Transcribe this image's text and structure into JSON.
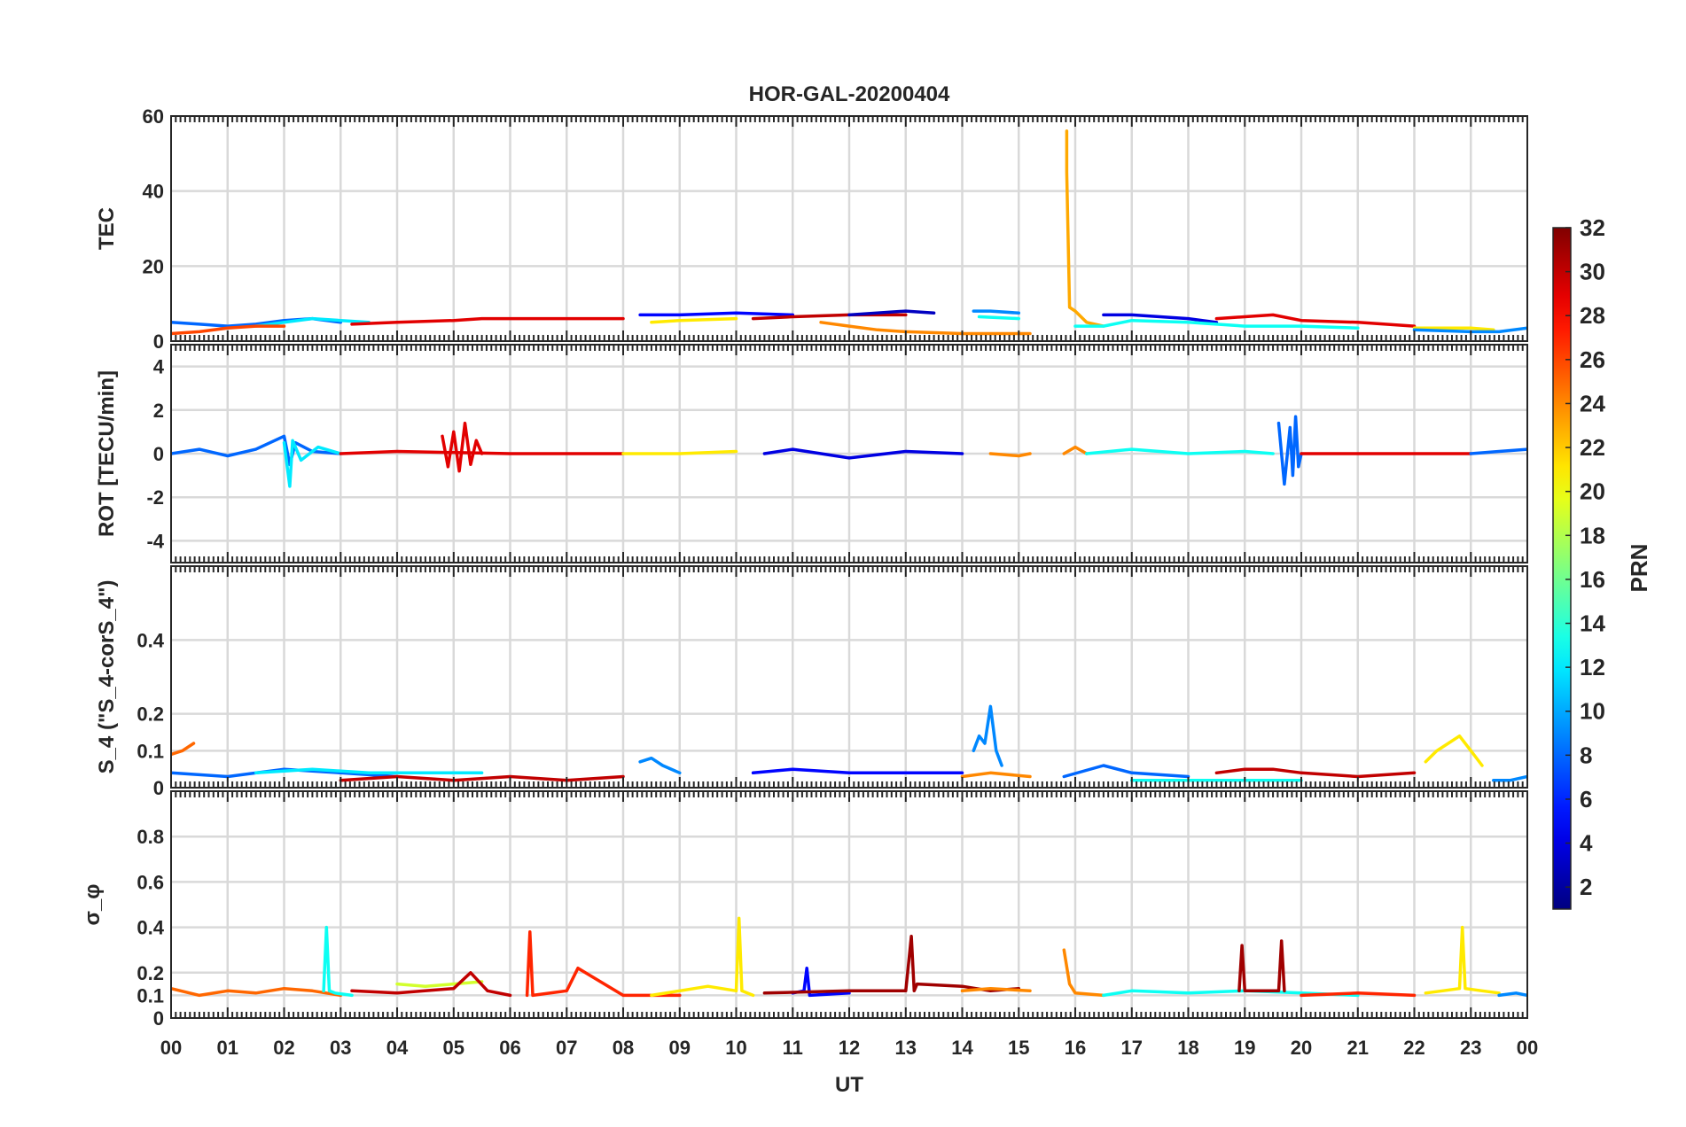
{
  "figure": {
    "title": "HOR-GAL-20200404",
    "xlabel": "UT",
    "x_ticks": [
      "00",
      "01",
      "02",
      "03",
      "04",
      "05",
      "06",
      "07",
      "08",
      "09",
      "10",
      "11",
      "12",
      "13",
      "14",
      "15",
      "16",
      "17",
      "18",
      "19",
      "20",
      "21",
      "22",
      "23",
      "00"
    ]
  },
  "colorbar": {
    "label": "PRN",
    "range": [
      1,
      32
    ],
    "ticks": [
      "2",
      "4",
      "6",
      "8",
      "10",
      "12",
      "14",
      "16",
      "18",
      "20",
      "22",
      "24",
      "26",
      "28",
      "30",
      "32"
    ],
    "colormap": "jet"
  },
  "chart_data": [
    {
      "type": "line",
      "panel": "tec",
      "ylabel": "TEC",
      "ylim": [
        0,
        60
      ],
      "y_ticks": [
        "0",
        "20",
        "40",
        "60"
      ],
      "grid": true,
      "series": [
        {
          "prn": 8,
          "x": [
            0,
            0.5,
            1,
            1.5,
            2,
            2.5,
            3
          ],
          "y": [
            5,
            4.5,
            4,
            4.5,
            5.5,
            6,
            5
          ]
        },
        {
          "prn": 12,
          "x": [
            1.5,
            2,
            2.5,
            3,
            3.5
          ],
          "y": [
            4,
            5,
            6,
            5.5,
            5
          ]
        },
        {
          "prn": 26,
          "x": [
            0,
            0.5,
            1,
            1.5,
            2
          ],
          "y": [
            2,
            2.5,
            3.5,
            4,
            4
          ]
        },
        {
          "prn": 29,
          "x": [
            3.2,
            4,
            5,
            5.5,
            6,
            7,
            8
          ],
          "y": [
            4.5,
            5,
            5.5,
            6,
            6,
            6,
            6
          ]
        },
        {
          "prn": 5,
          "x": [
            8.3,
            9,
            10,
            11
          ],
          "y": [
            7,
            7,
            7.5,
            7
          ]
        },
        {
          "prn": 21,
          "x": [
            8.5,
            9,
            10
          ],
          "y": [
            5,
            5.5,
            6
          ]
        },
        {
          "prn": 30,
          "x": [
            10.3,
            11,
            12,
            13
          ],
          "y": [
            6,
            6.5,
            7,
            7
          ]
        },
        {
          "prn": 3,
          "x": [
            12,
            13,
            13.5
          ],
          "y": [
            7,
            8,
            7.5
          ]
        },
        {
          "prn": 24,
          "x": [
            11.5,
            12,
            12.5,
            13,
            14,
            15.2
          ],
          "y": [
            5,
            4,
            3,
            2.5,
            2,
            2
          ]
        },
        {
          "prn": 9,
          "x": [
            14.2,
            14.5,
            15
          ],
          "y": [
            8,
            8,
            7.5
          ]
        },
        {
          "prn": 13,
          "x": [
            14.3,
            15
          ],
          "y": [
            6.5,
            6
          ]
        },
        {
          "prn": 23,
          "x": [
            15.85,
            15.85,
            15.9,
            16,
            16.2,
            16.5
          ],
          "y": [
            56,
            45,
            9,
            8,
            5,
            4
          ]
        },
        {
          "prn": 4,
          "x": [
            16.5,
            17,
            18,
            18.5
          ],
          "y": [
            7,
            7,
            6,
            5
          ]
        },
        {
          "prn": 13,
          "x": [
            16,
            16.5,
            17,
            18,
            19,
            20,
            21
          ],
          "y": [
            4,
            4,
            5.5,
            5,
            4,
            4,
            3.5
          ]
        },
        {
          "prn": 29,
          "x": [
            18.5,
            19,
            19.5,
            20,
            21,
            22
          ],
          "y": [
            6,
            6.5,
            7,
            5.5,
            5,
            4
          ]
        },
        {
          "prn": 21,
          "x": [
            22,
            23,
            23.4
          ],
          "y": [
            3.5,
            3.5,
            3
          ]
        },
        {
          "prn": 9,
          "x": [
            22,
            23,
            23.5,
            24
          ],
          "y": [
            3,
            2.5,
            2.5,
            3.5
          ]
        }
      ]
    },
    {
      "type": "line",
      "panel": "rot",
      "ylabel": "ROT [TECU/min]",
      "ylim": [
        -5,
        5
      ],
      "y_ticks": [
        "-4",
        "-2",
        "0",
        "2",
        "4"
      ],
      "grid": true,
      "series": [
        {
          "prn": 8,
          "x": [
            0,
            0.5,
            1,
            1.5,
            2,
            2.1,
            2.2,
            2.5,
            3
          ],
          "y": [
            0,
            0.2,
            -0.1,
            0.2,
            0.8,
            -0.5,
            0.5,
            0.1,
            0
          ]
        },
        {
          "prn": 12,
          "x": [
            2,
            2.1,
            2.15,
            2.3,
            2.6,
            3
          ],
          "y": [
            0.5,
            -1.5,
            0.6,
            -0.3,
            0.3,
            0
          ]
        },
        {
          "prn": 29,
          "x": [
            4.8,
            4.9,
            5,
            5.1,
            5.2,
            5.3,
            5.4,
            5.5
          ],
          "y": [
            0.8,
            -0.6,
            1.0,
            -0.8,
            1.4,
            -0.5,
            0.6,
            0
          ]
        },
        {
          "prn": 29,
          "x": [
            3,
            4,
            6,
            7,
            8
          ],
          "y": [
            0,
            0.1,
            0,
            0,
            0
          ]
        },
        {
          "prn": 21,
          "x": [
            8,
            9,
            10
          ],
          "y": [
            0,
            0,
            0.1
          ]
        },
        {
          "prn": 4,
          "x": [
            10.5,
            11,
            12,
            13,
            14
          ],
          "y": [
            0,
            0.2,
            -0.2,
            0.1,
            0
          ]
        },
        {
          "prn": 24,
          "x": [
            14.5,
            15,
            15.2
          ],
          "y": [
            0,
            -0.1,
            0
          ]
        },
        {
          "prn": 24,
          "x": [
            15.8,
            16,
            16.2
          ],
          "y": [
            0,
            0.3,
            0
          ]
        },
        {
          "prn": 13,
          "x": [
            16.2,
            17,
            18,
            19,
            19.5
          ],
          "y": [
            0,
            0.2,
            0,
            0.1,
            0
          ]
        },
        {
          "prn": 8,
          "x": [
            19.6,
            19.7,
            19.8,
            19.85,
            19.9,
            19.95,
            20
          ],
          "y": [
            1.4,
            -1.4,
            1.2,
            -1.0,
            1.7,
            -0.6,
            0
          ]
        },
        {
          "prn": 29,
          "x": [
            20,
            21,
            22,
            23
          ],
          "y": [
            0,
            0,
            0,
            0
          ]
        },
        {
          "prn": 8,
          "x": [
            23,
            23.5,
            24
          ],
          "y": [
            0,
            0.1,
            0.2
          ]
        }
      ]
    },
    {
      "type": "line",
      "panel": "s4",
      "ylabel": "S_4 (\"S_4-corS_4\")",
      "ylim": [
        0,
        0.6
      ],
      "y_ticks": [
        "0",
        "0.1",
        "0.2",
        "0.4"
      ],
      "grid": true,
      "series": [
        {
          "prn": 25,
          "x": [
            0,
            0.2,
            0.4
          ],
          "y": [
            0.09,
            0.1,
            0.12
          ]
        },
        {
          "prn": 8,
          "x": [
            0,
            1,
            2,
            3,
            4
          ],
          "y": [
            0.04,
            0.03,
            0.05,
            0.04,
            0.03
          ]
        },
        {
          "prn": 12,
          "x": [
            1.5,
            2.5,
            3.5,
            4.5,
            5.5
          ],
          "y": [
            0.04,
            0.05,
            0.04,
            0.04,
            0.04
          ]
        },
        {
          "prn": 30,
          "x": [
            3,
            4,
            5,
            6,
            7,
            8
          ],
          "y": [
            0.02,
            0.03,
            0.02,
            0.03,
            0.02,
            0.03
          ]
        },
        {
          "prn": 9,
          "x": [
            8.3,
            8.5,
            8.7,
            9
          ],
          "y": [
            0.07,
            0.08,
            0.06,
            0.04
          ]
        },
        {
          "prn": 5,
          "x": [
            10.3,
            11,
            12,
            13,
            14
          ],
          "y": [
            0.04,
            0.05,
            0.04,
            0.04,
            0.04
          ]
        },
        {
          "prn": 9,
          "x": [
            14.2,
            14.3,
            14.4,
            14.5,
            14.6,
            14.7
          ],
          "y": [
            0.1,
            0.14,
            0.12,
            0.22,
            0.1,
            0.06
          ]
        },
        {
          "prn": 24,
          "x": [
            14,
            14.5,
            15.2
          ],
          "y": [
            0.03,
            0.04,
            0.03
          ]
        },
        {
          "prn": 8,
          "x": [
            15.8,
            16.5,
            17,
            18
          ],
          "y": [
            0.03,
            0.06,
            0.04,
            0.03
          ]
        },
        {
          "prn": 13,
          "x": [
            17,
            18,
            19,
            20
          ],
          "y": [
            0.02,
            0.02,
            0.02,
            0.02
          ]
        },
        {
          "prn": 30,
          "x": [
            18.5,
            19,
            19.5,
            20,
            21,
            22
          ],
          "y": [
            0.04,
            0.05,
            0.05,
            0.04,
            0.03,
            0.04
          ]
        },
        {
          "prn": 21,
          "x": [
            22.2,
            22.4,
            22.6,
            22.8,
            23,
            23.2
          ],
          "y": [
            0.07,
            0.1,
            0.12,
            0.14,
            0.1,
            0.06
          ]
        },
        {
          "prn": 9,
          "x": [
            23.4,
            23.7,
            24
          ],
          "y": [
            0.02,
            0.02,
            0.03
          ]
        }
      ]
    },
    {
      "type": "line",
      "panel": "sigma_phi",
      "ylabel": "σ_φ",
      "ylim": [
        0,
        1
      ],
      "y_ticks": [
        "0",
        "0.1",
        "0.2",
        "0.4",
        "0.6",
        "0.8"
      ],
      "grid": true,
      "series": [
        {
          "prn": 25,
          "x": [
            0,
            0.5,
            1,
            1.5,
            2,
            2.5,
            3
          ],
          "y": [
            0.13,
            0.1,
            0.12,
            0.11,
            0.13,
            0.12,
            0.1
          ]
        },
        {
          "prn": 13,
          "x": [
            2.7,
            2.75,
            2.8,
            2.9,
            3.2
          ],
          "y": [
            0.12,
            0.4,
            0.12,
            0.11,
            0.1
          ]
        },
        {
          "prn": 19,
          "x": [
            4,
            4.5,
            5,
            5.5
          ],
          "y": [
            0.15,
            0.14,
            0.15,
            0.16
          ]
        },
        {
          "prn": 30,
          "x": [
            3.2,
            4,
            5,
            5.3,
            5.6,
            6
          ],
          "y": [
            0.12,
            0.11,
            0.13,
            0.2,
            0.12,
            0.1
          ]
        },
        {
          "prn": 27,
          "x": [
            6.3,
            6.35,
            6.4,
            7,
            7.2,
            8,
            9
          ],
          "y": [
            0.1,
            0.38,
            0.1,
            0.12,
            0.22,
            0.1,
            0.1
          ]
        },
        {
          "prn": 21,
          "x": [
            8.5,
            9,
            9.5,
            10,
            10.05,
            10.1,
            10.3
          ],
          "y": [
            0.1,
            0.12,
            0.14,
            0.12,
            0.44,
            0.12,
            0.1
          ]
        },
        {
          "prn": 5,
          "x": [
            11,
            11.2,
            11.25,
            11.3,
            12
          ],
          "y": [
            0.11,
            0.12,
            0.22,
            0.1,
            0.11
          ]
        },
        {
          "prn": 31,
          "x": [
            10.5,
            12,
            13,
            13.1,
            13.15,
            13.2,
            14,
            14.5,
            15
          ],
          "y": [
            0.11,
            0.12,
            0.12,
            0.36,
            0.12,
            0.15,
            0.14,
            0.12,
            0.13
          ]
        },
        {
          "prn": 24,
          "x": [
            14,
            14.5,
            15.2
          ],
          "y": [
            0.12,
            0.13,
            0.12
          ]
        },
        {
          "prn": 24,
          "x": [
            15.8,
            15.9,
            16,
            16.5
          ],
          "y": [
            0.3,
            0.15,
            0.11,
            0.1
          ]
        },
        {
          "prn": 13,
          "x": [
            16.5,
            17,
            18,
            19,
            20,
            21
          ],
          "y": [
            0.1,
            0.12,
            0.11,
            0.12,
            0.11,
            0.1
          ]
        },
        {
          "prn": 31,
          "x": [
            18.9,
            18.95,
            19,
            19.6,
            19.65,
            19.7
          ],
          "y": [
            0.12,
            0.32,
            0.12,
            0.12,
            0.34,
            0.12
          ]
        },
        {
          "prn": 27,
          "x": [
            20,
            21,
            22
          ],
          "y": [
            0.1,
            0.11,
            0.1
          ]
        },
        {
          "prn": 21,
          "x": [
            22.2,
            22.5,
            22.8,
            22.85,
            22.9,
            23.2,
            23.5
          ],
          "y": [
            0.11,
            0.12,
            0.13,
            0.4,
            0.13,
            0.12,
            0.11
          ]
        },
        {
          "prn": 9,
          "x": [
            23.5,
            23.8,
            24
          ],
          "y": [
            0.1,
            0.11,
            0.1
          ]
        }
      ]
    }
  ]
}
